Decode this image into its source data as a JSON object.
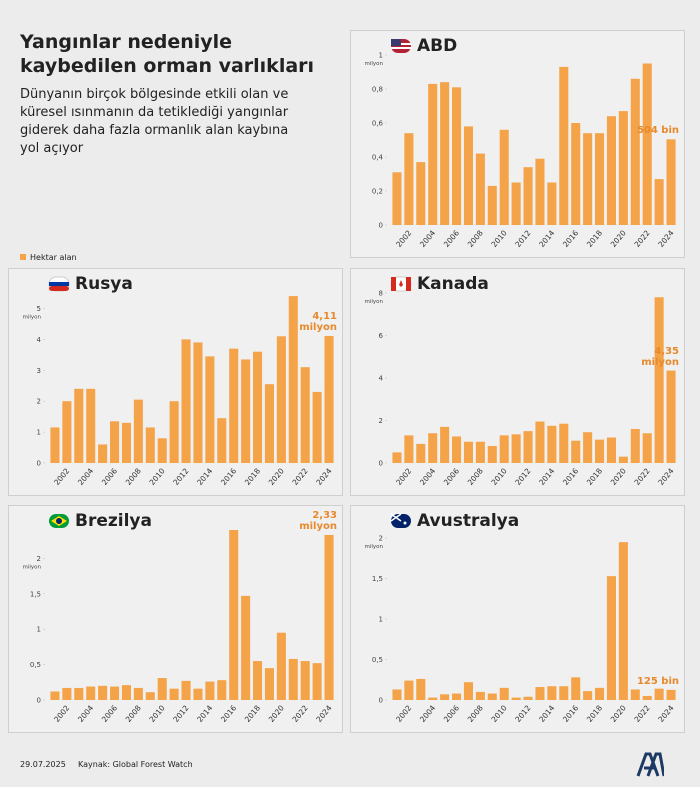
{
  "header": {
    "title": "Yangınlar nedeniyle kaybedilen orman varlıkları",
    "subtitle": "Dünyanın birçok bölgesinde etkili olan ve küresel ısınmanın da tetiklediği yangınlar giderek daha fazla ormanlık alan kaybına yol açıyor"
  },
  "legend": "Hektar alan",
  "footer": {
    "date": "29.07.2025",
    "source": "Kaynak: Global Forest Watch"
  },
  "chart_data": [
    {
      "type": "bar",
      "title": "ABD",
      "y_label": "milyon",
      "color": "#f4a349",
      "categories": [
        null,
        "2002",
        null,
        "2004",
        null,
        "2006",
        null,
        "2008",
        null,
        "2010",
        null,
        "2012",
        null,
        "2014",
        null,
        "2016",
        null,
        "2018",
        null,
        "2020",
        null,
        "2022",
        null,
        "2024"
      ],
      "values": [
        0.31,
        0.54,
        0.37,
        0.83,
        0.84,
        0.81,
        0.58,
        0.42,
        0.23,
        0.56,
        0.25,
        0.34,
        0.39,
        0.25,
        0.93,
        0.6,
        0.54,
        0.54,
        0.64,
        0.67,
        0.86,
        0.95,
        0.27,
        0.504
      ],
      "value_labels": [
        null,
        null,
        null,
        null,
        null,
        null,
        null,
        null,
        null,
        null,
        null,
        null,
        null,
        null,
        null,
        null,
        null,
        null,
        null,
        null,
        null,
        null,
        null,
        "504 bin"
      ],
      "ylim": [
        0,
        1
      ],
      "yticks": [
        0,
        {
          "value": 0.2,
          "label": "0,2"
        },
        {
          "value": 0.4,
          "label": "0,4"
        },
        {
          "value": 0.6,
          "label": "0,6"
        },
        {
          "value": 0.8,
          "label": "0,8"
        },
        1
      ]
    },
    {
      "type": "bar",
      "title": "Rusya",
      "y_label": "milyon",
      "color": "#f4a349",
      "categories": [
        null,
        "2002",
        null,
        "2004",
        null,
        "2006",
        null,
        "2008",
        null,
        "2010",
        null,
        "2012",
        null,
        "2014",
        null,
        "2016",
        null,
        "2018",
        null,
        "2020",
        null,
        "2022",
        null,
        "2024"
      ],
      "values": [
        1.15,
        2.0,
        2.4,
        2.4,
        0.6,
        1.35,
        1.3,
        2.05,
        1.15,
        0.8,
        2.0,
        4.0,
        3.9,
        3.45,
        1.45,
        3.7,
        3.35,
        3.6,
        2.55,
        4.1,
        5.4,
        3.1,
        2.3,
        4.11
      ],
      "value_labels": [
        null,
        null,
        null,
        null,
        null,
        null,
        null,
        null,
        null,
        null,
        null,
        null,
        null,
        null,
        null,
        null,
        null,
        null,
        null,
        null,
        null,
        null,
        null,
        "4,11 milyon"
      ],
      "ylim": [
        0,
        5.5
      ],
      "yticks": [
        0,
        1,
        2,
        3,
        4,
        5
      ]
    },
    {
      "type": "bar",
      "title": "Kanada",
      "y_label": "milyon",
      "color": "#f4a349",
      "categories": [
        null,
        "2002",
        null,
        "2004",
        null,
        "2006",
        null,
        "2008",
        null,
        "2010",
        null,
        "2012",
        null,
        "2014",
        null,
        "2016",
        null,
        "2018",
        null,
        "2020",
        null,
        "2022",
        null,
        "2024"
      ],
      "values": [
        0.5,
        1.3,
        0.9,
        1.4,
        1.7,
        1.25,
        1.0,
        1.0,
        0.8,
        1.3,
        1.35,
        1.5,
        1.95,
        1.75,
        1.85,
        1.05,
        1.45,
        1.1,
        1.2,
        0.3,
        1.6,
        1.4,
        7.8,
        4.35
      ],
      "value_labels": [
        null,
        null,
        null,
        null,
        null,
        null,
        null,
        null,
        null,
        null,
        null,
        null,
        null,
        null,
        null,
        null,
        null,
        null,
        null,
        null,
        null,
        null,
        null,
        "4,35 milyon"
      ],
      "ylim": [
        0,
        8
      ],
      "yticks": [
        0,
        2,
        4,
        6,
        8
      ]
    },
    {
      "type": "bar",
      "title": "Brezilya",
      "y_label": "milyon",
      "color": "#f4a349",
      "categories": [
        null,
        "2002",
        null,
        "2004",
        null,
        "2006",
        null,
        "2008",
        null,
        "2010",
        null,
        "2012",
        null,
        "2014",
        null,
        "2016",
        null,
        "2018",
        null,
        "2020",
        null,
        "2022",
        null,
        "2024"
      ],
      "values": [
        0.12,
        0.17,
        0.17,
        0.19,
        0.2,
        0.19,
        0.21,
        0.17,
        0.11,
        0.31,
        0.16,
        0.27,
        0.16,
        0.26,
        0.28,
        2.4,
        1.47,
        0.55,
        0.45,
        0.95,
        0.58,
        0.55,
        0.52,
        2.33
      ],
      "value_labels": [
        null,
        null,
        null,
        null,
        null,
        null,
        null,
        null,
        null,
        null,
        null,
        null,
        null,
        null,
        null,
        null,
        null,
        null,
        null,
        null,
        null,
        null,
        null,
        "2,33 milyon"
      ],
      "ylim": [
        0,
        2.4
      ],
      "yticks": [
        0,
        {
          "value": 0.5,
          "label": "0,5"
        },
        1,
        {
          "value": 1.5,
          "label": "1,5"
        },
        2
      ]
    },
    {
      "type": "bar",
      "title": "Avustralya",
      "y_label": "milyon",
      "color": "#f4a349",
      "categories": [
        null,
        "2002",
        null,
        "2004",
        null,
        "2006",
        null,
        "2008",
        null,
        "2010",
        null,
        "2012",
        null,
        "2014",
        null,
        "2016",
        null,
        "2018",
        null,
        "2020",
        null,
        "2022",
        null,
        "2024"
      ],
      "values": [
        0.13,
        0.24,
        0.26,
        0.03,
        0.07,
        0.08,
        0.22,
        0.1,
        0.08,
        0.15,
        0.03,
        0.04,
        0.16,
        0.17,
        0.17,
        0.28,
        0.11,
        0.15,
        1.53,
        1.95,
        0.13,
        0.05,
        0.14,
        0.125
      ],
      "value_labels": [
        null,
        null,
        null,
        null,
        null,
        null,
        null,
        null,
        null,
        null,
        null,
        null,
        null,
        null,
        null,
        null,
        null,
        null,
        null,
        null,
        null,
        null,
        null,
        "125 bin"
      ],
      "ylim": [
        0,
        2.1
      ],
      "yticks": [
        0,
        {
          "value": 0.5,
          "label": "0,5"
        },
        1,
        {
          "value": 1.5,
          "label": "1,5"
        },
        2
      ]
    }
  ]
}
